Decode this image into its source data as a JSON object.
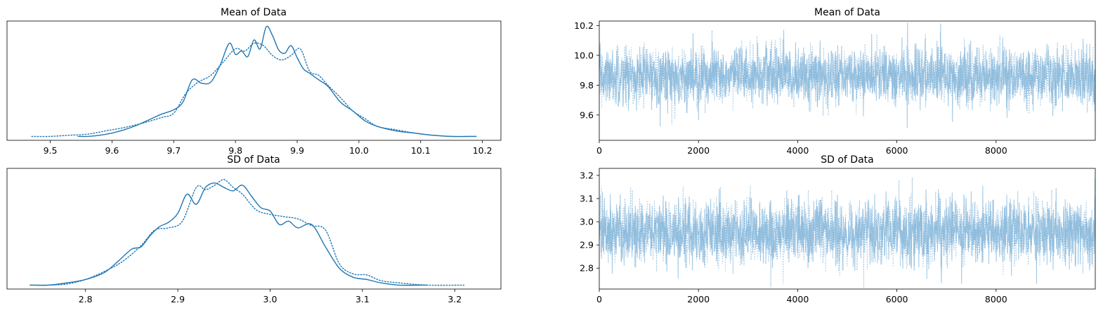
{
  "chart_data": [
    {
      "type": "line",
      "subtype": "density",
      "title": "Mean of Data",
      "xlabel": "",
      "ylabel": "",
      "xlim": [
        9.43,
        10.23
      ],
      "xticks": [
        "9.5",
        "9.6",
        "9.7",
        "9.8",
        "9.9",
        "10.0",
        "10.1",
        "10.2"
      ],
      "xtick_values": [
        9.5,
        9.6,
        9.7,
        9.8,
        9.9,
        10.0,
        10.1,
        10.2
      ],
      "yticks": [],
      "color": "#1f77b4",
      "series": [
        {
          "style": "solid",
          "x": [
            9.545,
            9.56,
            9.58,
            9.6,
            9.62,
            9.64,
            9.66,
            9.68,
            9.7,
            9.715,
            9.73,
            9.745,
            9.76,
            9.775,
            9.79,
            9.8,
            9.81,
            9.82,
            9.83,
            9.84,
            9.85,
            9.86,
            9.87,
            9.88,
            9.89,
            9.9,
            9.91,
            9.92,
            9.935,
            9.95,
            9.97,
            9.99,
            10.01,
            10.03,
            10.06,
            10.09,
            10.12,
            10.15,
            10.19
          ],
          "y": [
            0.01,
            0.01,
            0.02,
            0.04,
            0.07,
            0.11,
            0.16,
            0.21,
            0.25,
            0.32,
            0.52,
            0.49,
            0.5,
            0.65,
            0.85,
            0.75,
            0.78,
            0.73,
            0.88,
            0.8,
            1.0,
            0.92,
            0.79,
            0.76,
            0.83,
            0.72,
            0.62,
            0.58,
            0.52,
            0.46,
            0.32,
            0.24,
            0.15,
            0.1,
            0.06,
            0.04,
            0.02,
            0.01,
            0.01
          ]
        },
        {
          "style": "dotted",
          "x": [
            9.47,
            9.5,
            9.53,
            9.56,
            9.59,
            9.62,
            9.65,
            9.68,
            9.7,
            9.72,
            9.74,
            9.76,
            9.78,
            9.8,
            9.815,
            9.83,
            9.845,
            9.86,
            9.875,
            9.89,
            9.905,
            9.92,
            9.935,
            9.95,
            9.97,
            9.99,
            10.01,
            10.03,
            10.06,
            10.09,
            10.12,
            10.15,
            10.19
          ],
          "y": [
            0.01,
            0.01,
            0.02,
            0.03,
            0.06,
            0.09,
            0.13,
            0.18,
            0.22,
            0.4,
            0.5,
            0.56,
            0.68,
            0.8,
            0.78,
            0.85,
            0.83,
            0.74,
            0.7,
            0.74,
            0.8,
            0.6,
            0.56,
            0.47,
            0.36,
            0.24,
            0.17,
            0.1,
            0.07,
            0.04,
            0.02,
            0.01,
            0.01
          ]
        }
      ]
    },
    {
      "type": "line",
      "subtype": "trace",
      "title": "Mean of Data",
      "xlabel": "",
      "ylabel": "",
      "xlim": [
        0,
        10000
      ],
      "ylim": [
        9.43,
        10.23
      ],
      "xticks": [
        "0",
        "2000",
        "4000",
        "6000",
        "8000"
      ],
      "xtick_values": [
        0,
        2000,
        4000,
        6000,
        8000
      ],
      "yticks": [
        "9.6",
        "9.8",
        "10.0",
        "10.2"
      ],
      "ytick_values": [
        9.6,
        9.8,
        10.0,
        10.2
      ],
      "color": "#1f77b4",
      "draws": 10000,
      "center": 9.86,
      "spread": 0.095,
      "series_styles": [
        "solid",
        "dotted"
      ]
    },
    {
      "type": "line",
      "subtype": "density",
      "title": "SD of Data",
      "xlabel": "",
      "ylabel": "",
      "xlim": [
        2.715,
        3.25
      ],
      "xticks": [
        "2.8",
        "2.9",
        "3.0",
        "3.1",
        "3.2"
      ],
      "xtick_values": [
        2.8,
        2.9,
        3.0,
        3.1,
        3.2
      ],
      "yticks": [],
      "color": "#1f77b4",
      "series": [
        {
          "style": "solid",
          "x": [
            2.74,
            2.76,
            2.78,
            2.8,
            2.82,
            2.835,
            2.85,
            2.86,
            2.87,
            2.88,
            2.89,
            2.9,
            2.91,
            2.92,
            2.93,
            2.94,
            2.95,
            2.96,
            2.97,
            2.98,
            2.99,
            3.0,
            3.01,
            3.02,
            3.03,
            3.045,
            3.06,
            3.075,
            3.09,
            3.105,
            3.12,
            3.14,
            3.17
          ],
          "y": [
            0.01,
            0.01,
            0.03,
            0.06,
            0.12,
            0.22,
            0.33,
            0.35,
            0.45,
            0.53,
            0.57,
            0.65,
            0.82,
            0.73,
            0.88,
            0.92,
            0.88,
            0.85,
            0.9,
            0.8,
            0.7,
            0.67,
            0.55,
            0.58,
            0.52,
            0.55,
            0.35,
            0.16,
            0.08,
            0.06,
            0.03,
            0.01,
            0.01
          ]
        },
        {
          "style": "dotted",
          "x": [
            2.74,
            2.76,
            2.78,
            2.8,
            2.82,
            2.84,
            2.86,
            2.875,
            2.89,
            2.905,
            2.92,
            2.93,
            2.94,
            2.95,
            2.96,
            2.97,
            2.985,
            3.0,
            3.015,
            3.03,
            3.045,
            3.06,
            3.075,
            3.09,
            3.105,
            3.12,
            3.14,
            3.17,
            3.21
          ],
          "y": [
            0.01,
            0.01,
            0.02,
            0.06,
            0.13,
            0.22,
            0.36,
            0.5,
            0.52,
            0.58,
            0.88,
            0.86,
            0.9,
            0.95,
            0.88,
            0.82,
            0.68,
            0.64,
            0.62,
            0.6,
            0.54,
            0.5,
            0.2,
            0.11,
            0.1,
            0.05,
            0.03,
            0.01,
            0.01
          ]
        }
      ]
    },
    {
      "type": "line",
      "subtype": "trace",
      "title": "SD of Data",
      "xlabel": "",
      "ylabel": "",
      "xlim": [
        0,
        10000
      ],
      "ylim": [
        2.71,
        3.23
      ],
      "xticks": [
        "0",
        "2000",
        "4000",
        "6000",
        "8000"
      ],
      "xtick_values": [
        0,
        2000,
        4000,
        6000,
        8000
      ],
      "yticks": [
        "2.8",
        "2.9",
        "3.0",
        "3.1",
        "3.2"
      ],
      "ytick_values": [
        2.8,
        2.9,
        3.0,
        3.1,
        3.2
      ],
      "color": "#1f77b4",
      "draws": 10000,
      "center": 2.955,
      "spread": 0.07,
      "series_styles": [
        "solid",
        "dotted"
      ]
    }
  ]
}
